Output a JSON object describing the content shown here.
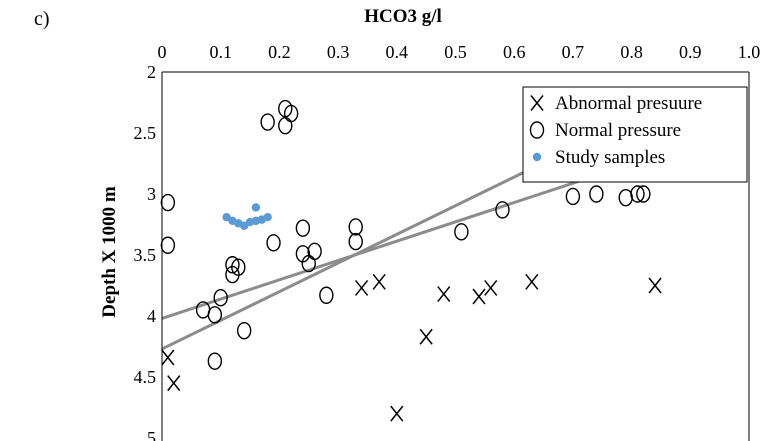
{
  "panel_label": "c)",
  "chart_data": {
    "type": "scatter",
    "title": "HCO3 g/l",
    "xlabel": "HCO3 g/l",
    "ylabel": "Depth X 1000 m",
    "xlim": [
      0,
      1.0
    ],
    "ylim": [
      2,
      5
    ],
    "y_inverted": true,
    "x_axis_position": "top",
    "x_ticks": [
      "0",
      "0.1",
      "0.2",
      "0.3",
      "0.4",
      "0.5",
      "0.6",
      "0.7",
      "0.8",
      "0.9",
      "1.0"
    ],
    "x_tick_values": [
      0,
      0.1,
      0.2,
      0.3,
      0.4,
      0.5,
      0.6,
      0.7,
      0.8,
      0.9,
      1.0
    ],
    "y_ticks": [
      "2",
      "2.5",
      "3",
      "3.5",
      "4",
      "4.5",
      "5"
    ],
    "y_tick_values": [
      2,
      2.5,
      3,
      3.5,
      4,
      4.5,
      5
    ],
    "grid": false,
    "legend_position": "top-right",
    "series": [
      {
        "name": "Abnormal presuure",
        "marker": "X",
        "color": "#000000",
        "points": [
          [
            0.01,
            4.34
          ],
          [
            0.02,
            4.55
          ],
          [
            0.34,
            3.77
          ],
          [
            0.37,
            3.72
          ],
          [
            0.4,
            4.8
          ],
          [
            0.45,
            4.17
          ],
          [
            0.48,
            3.82
          ],
          [
            0.54,
            3.84
          ],
          [
            0.56,
            3.77
          ],
          [
            0.63,
            3.72
          ],
          [
            0.84,
            3.75
          ]
        ]
      },
      {
        "name": "Normal pressure",
        "marker": "O",
        "color": "#000000",
        "points": [
          [
            0.01,
            3.07
          ],
          [
            0.01,
            3.42
          ],
          [
            0.07,
            3.95
          ],
          [
            0.09,
            3.99
          ],
          [
            0.1,
            3.85
          ],
          [
            0.09,
            4.37
          ],
          [
            0.12,
            3.58
          ],
          [
            0.12,
            3.66
          ],
          [
            0.13,
            3.6
          ],
          [
            0.14,
            4.12
          ],
          [
            0.18,
            2.41
          ],
          [
            0.19,
            3.4
          ],
          [
            0.21,
            2.3
          ],
          [
            0.22,
            2.34
          ],
          [
            0.21,
            2.44
          ],
          [
            0.24,
            3.28
          ],
          [
            0.24,
            3.49
          ],
          [
            0.25,
            3.57
          ],
          [
            0.26,
            3.47
          ],
          [
            0.28,
            3.83
          ],
          [
            0.33,
            3.27
          ],
          [
            0.33,
            3.39
          ],
          [
            0.51,
            3.31
          ],
          [
            0.58,
            3.13
          ],
          [
            0.7,
            3.02
          ],
          [
            0.74,
            3.0
          ],
          [
            0.79,
            3.03
          ],
          [
            0.81,
            3.0
          ],
          [
            0.82,
            3.0
          ]
        ]
      },
      {
        "name": "Study samples",
        "marker": "filled-circle",
        "color": "#5b9bd5",
        "points": [
          [
            0.11,
            3.19
          ],
          [
            0.12,
            3.22
          ],
          [
            0.13,
            3.24
          ],
          [
            0.14,
            3.26
          ],
          [
            0.15,
            3.23
          ],
          [
            0.16,
            3.11
          ],
          [
            0.16,
            3.22
          ],
          [
            0.17,
            3.21
          ],
          [
            0.18,
            3.19
          ]
        ]
      }
    ],
    "trend_lines": [
      {
        "color": "#8c8c8c",
        "from": [
          0.0,
          4.02
        ],
        "to": [
          0.72,
          2.88
        ]
      },
      {
        "color": "#8c8c8c",
        "from": [
          0.0,
          4.27
        ],
        "to": [
          0.66,
          2.72
        ]
      }
    ]
  }
}
